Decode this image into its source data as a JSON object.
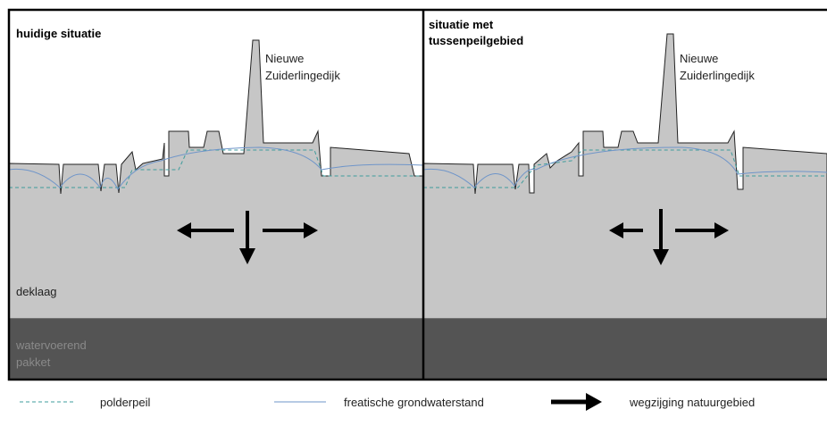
{
  "panels": [
    {
      "title": [
        "huidige situatie"
      ],
      "dike_label": [
        "Nieuwe",
        "Zuiderlingedijk"
      ],
      "top_layer": "deklaag",
      "aquifer": [
        "watervoerend",
        "pakket"
      ]
    },
    {
      "title": [
        "situatie met",
        "tussenpeilgebied"
      ],
      "dike_label": [
        "Nieuwe",
        "Zuiderlingedijk"
      ]
    }
  ],
  "legend": [
    {
      "label": "polderpeil"
    },
    {
      "label": "freatische grondwaterstand"
    },
    {
      "label": "wegzijging natuurgebied"
    }
  ]
}
